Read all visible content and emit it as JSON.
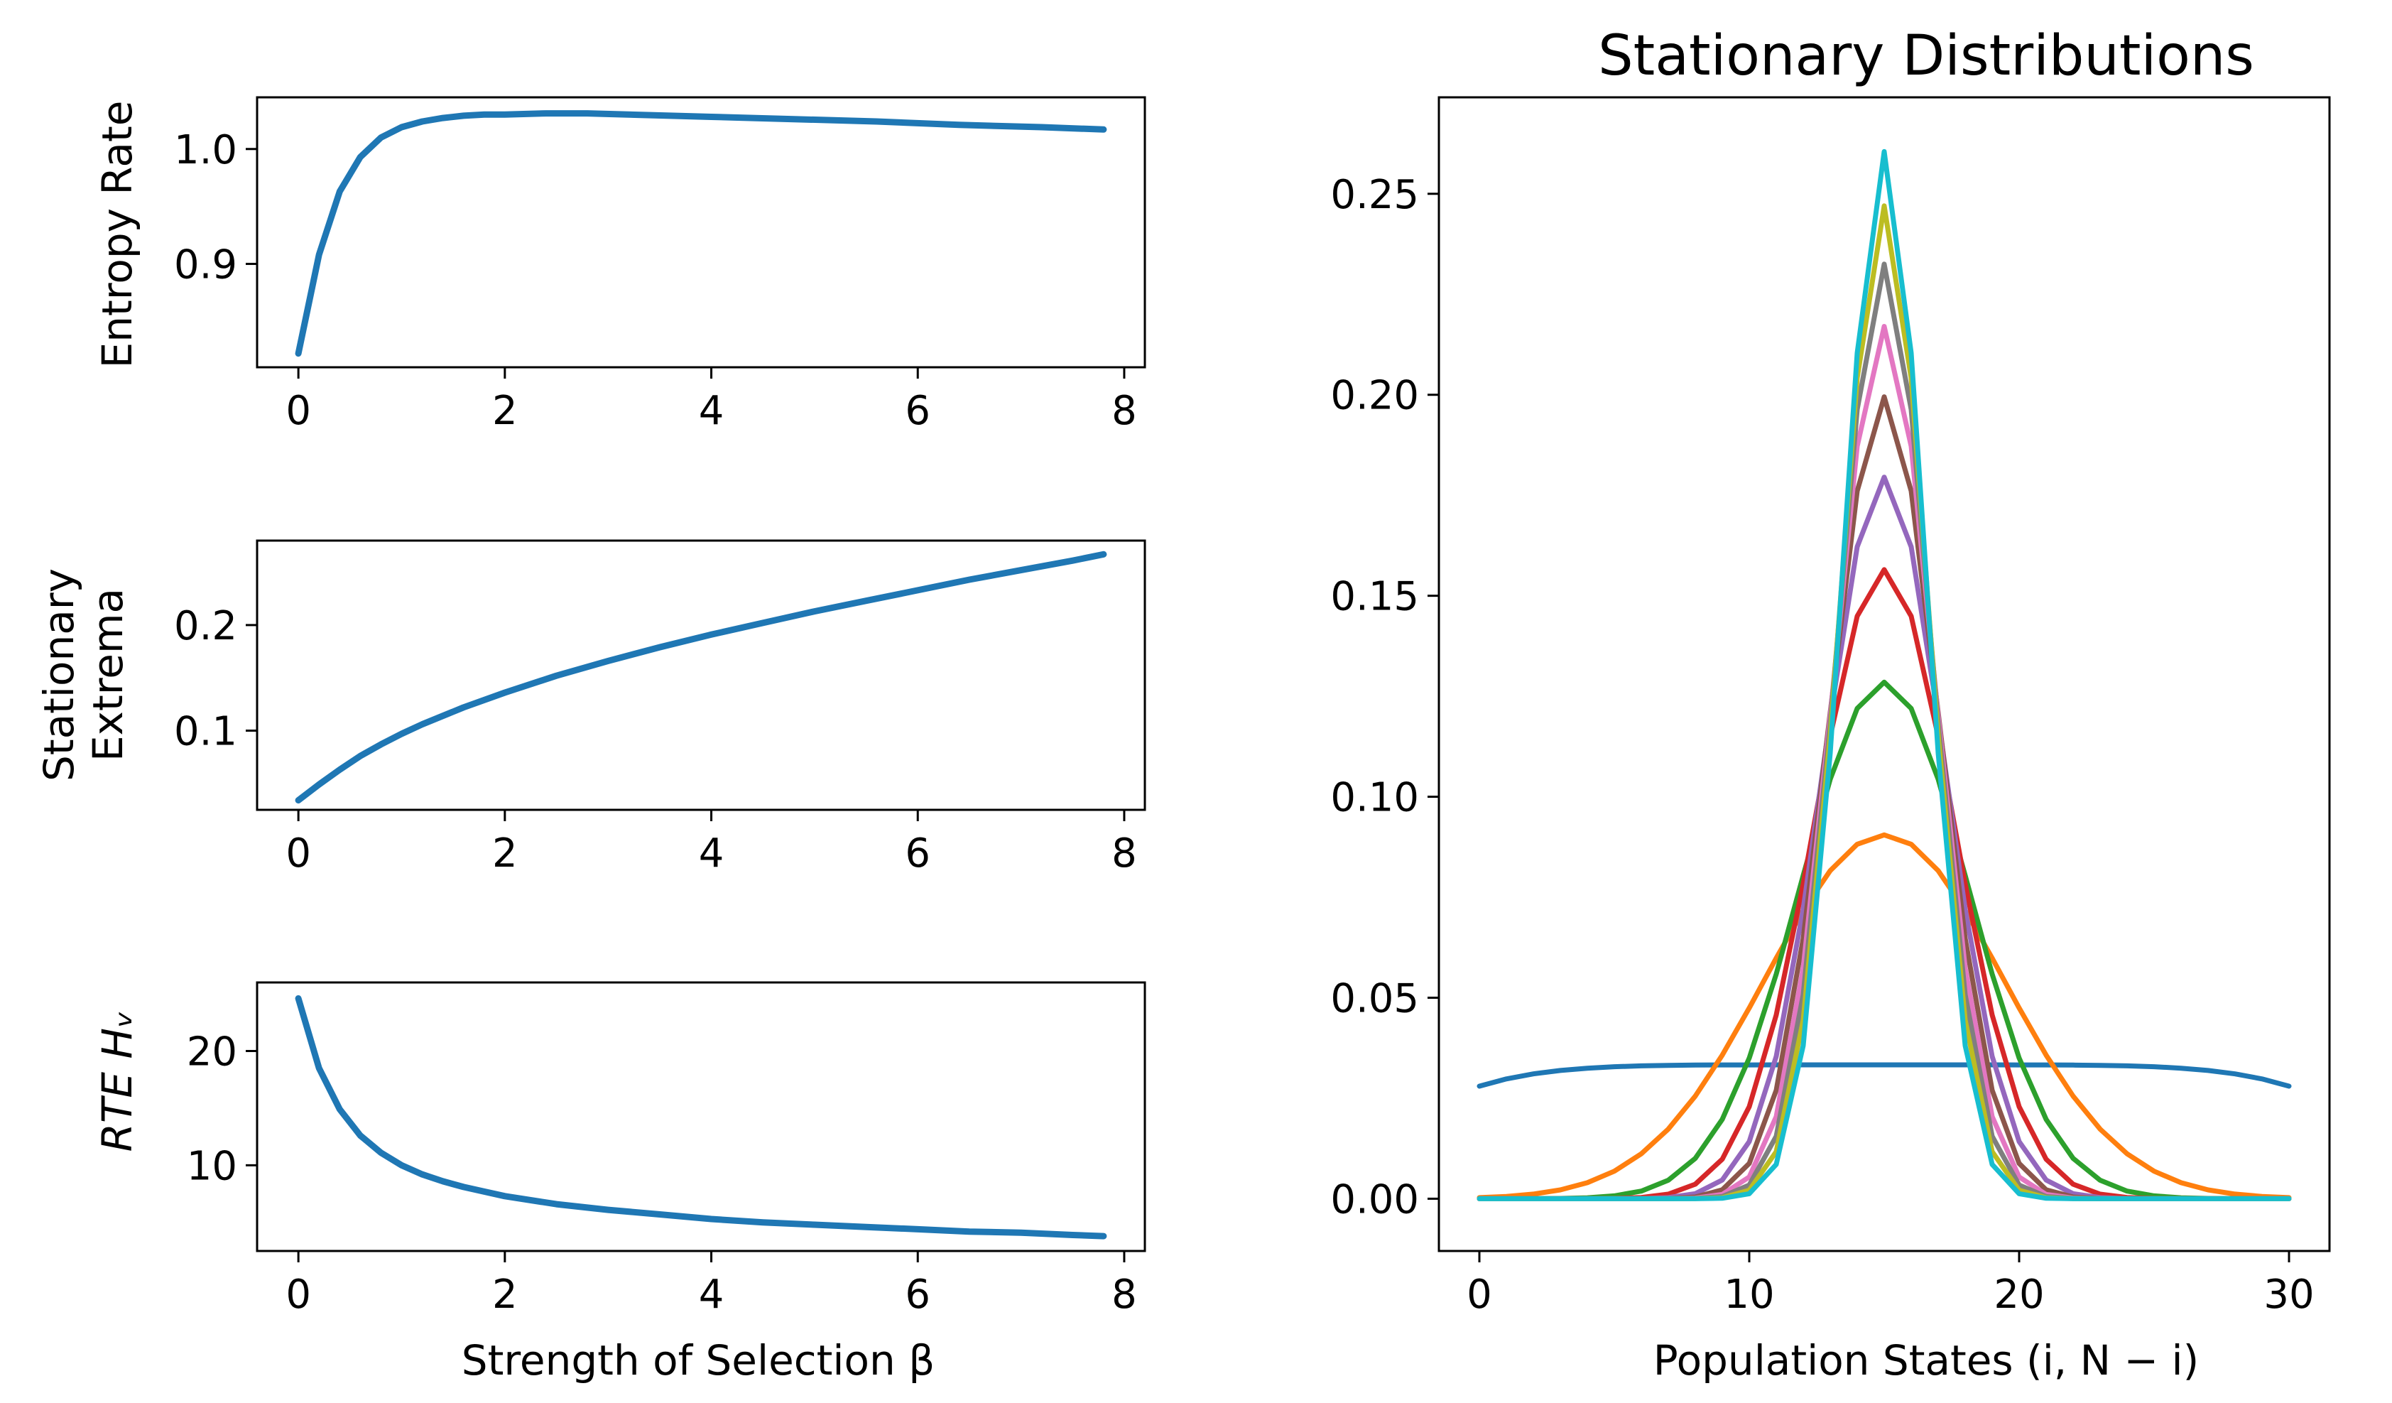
{
  "chart_data": [
    {
      "type": "line",
      "panel": "top-left",
      "title": "",
      "xlabel": "",
      "ylabel": "Entropy Rate",
      "xlim": [
        -0.4,
        8.2
      ],
      "ylim": [
        0.81,
        1.045
      ],
      "xticks": [
        0,
        2,
        4,
        6,
        8
      ],
      "yticks": [
        0.9,
        1.0
      ],
      "xtick_labels": [
        "0",
        "2",
        "4",
        "6",
        "8"
      ],
      "ytick_labels": [
        "0.9",
        "1.0"
      ],
      "series": [
        {
          "name": "entropy rate",
          "color": "#1f77b4",
          "x": [
            0,
            0.2,
            0.4,
            0.6,
            0.8,
            1.0,
            1.2,
            1.4,
            1.6,
            1.8,
            2.0,
            2.4,
            2.8,
            3.2,
            3.6,
            4.0,
            4.8,
            5.6,
            6.4,
            7.2,
            7.8
          ],
          "y": [
            0.822,
            0.908,
            0.963,
            0.993,
            1.01,
            1.019,
            1.024,
            1.027,
            1.029,
            1.03,
            1.03,
            1.031,
            1.031,
            1.03,
            1.029,
            1.028,
            1.026,
            1.024,
            1.021,
            1.019,
            1.017
          ]
        }
      ]
    },
    {
      "type": "line",
      "panel": "middle-left",
      "title": "",
      "xlabel": "",
      "ylabel_lines": [
        "Stationary",
        "Extrema"
      ],
      "xlim": [
        -0.4,
        8.2
      ],
      "ylim": [
        0.025,
        0.28
      ],
      "xticks": [
        0,
        2,
        4,
        6,
        8
      ],
      "yticks": [
        0.1,
        0.2
      ],
      "xtick_labels": [
        "0",
        "2",
        "4",
        "6",
        "8"
      ],
      "ytick_labels": [
        "0.1",
        "0.2"
      ],
      "series": [
        {
          "name": "stationary extrema",
          "color": "#1f77b4",
          "x": [
            0,
            0.2,
            0.4,
            0.6,
            0.8,
            1.0,
            1.2,
            1.6,
            2.0,
            2.5,
            3.0,
            3.5,
            4.0,
            4.5,
            5.0,
            5.5,
            6.0,
            6.5,
            7.0,
            7.5,
            7.8
          ],
          "y": [
            0.034,
            0.049,
            0.063,
            0.076,
            0.087,
            0.097,
            0.106,
            0.122,
            0.136,
            0.152,
            0.166,
            0.179,
            0.191,
            0.202,
            0.213,
            0.223,
            0.233,
            0.243,
            0.252,
            0.261,
            0.267
          ]
        }
      ]
    },
    {
      "type": "line",
      "panel": "bottom-left",
      "title": "",
      "xlabel": "Strength of Selection β",
      "ylabel": "RTE Hᵥ",
      "xlim": [
        -0.4,
        8.2
      ],
      "ylim": [
        2.5,
        26.0
      ],
      "xticks": [
        0,
        2,
        4,
        6,
        8
      ],
      "yticks": [
        10,
        20
      ],
      "xtick_labels": [
        "0",
        "2",
        "4",
        "6",
        "8"
      ],
      "ytick_labels": [
        "10",
        "20"
      ],
      "series": [
        {
          "name": "RTE",
          "color": "#1f77b4",
          "x": [
            0,
            0.2,
            0.4,
            0.6,
            0.8,
            1.0,
            1.2,
            1.4,
            1.6,
            1.8,
            2.0,
            2.5,
            3.0,
            3.5,
            4.0,
            4.5,
            5.0,
            5.5,
            6.0,
            6.5,
            7.0,
            7.5,
            7.8
          ],
          "y": [
            24.6,
            18.5,
            14.9,
            12.6,
            11.1,
            10.0,
            9.2,
            8.6,
            8.1,
            7.7,
            7.3,
            6.6,
            6.1,
            5.7,
            5.3,
            5.0,
            4.8,
            4.6,
            4.4,
            4.2,
            4.1,
            3.9,
            3.8
          ]
        }
      ]
    },
    {
      "type": "line",
      "panel": "right",
      "title": "Stationary Distributions",
      "xlabel": "Population States (i, N − i)",
      "ylabel": "",
      "xlim": [
        -1.5,
        31.5
      ],
      "ylim": [
        -0.013,
        0.274
      ],
      "xticks": [
        0,
        10,
        20,
        30
      ],
      "yticks": [
        0.0,
        0.05,
        0.1,
        0.15,
        0.2,
        0.25
      ],
      "xtick_labels": [
        "0",
        "10",
        "20",
        "30"
      ],
      "ytick_labels": [
        "0.00",
        "0.05",
        "0.10",
        "0.15",
        "0.20",
        "0.25"
      ],
      "x_range": [
        0,
        30
      ],
      "series": [
        {
          "name": "beta 0",
          "color": "#1f77b4",
          "peak": 0.0333,
          "form": "flat",
          "edge": 0.028
        },
        {
          "name": "beta 1",
          "color": "#ff7f0e",
          "peak": 0.0905,
          "width": 4.4
        },
        {
          "name": "beta 2",
          "color": "#2ca02c",
          "peak": 0.1285,
          "width": 3.1
        },
        {
          "name": "beta 3",
          "color": "#d62728",
          "peak": 0.1565,
          "width": 2.55
        },
        {
          "name": "beta 4",
          "color": "#9467bd",
          "peak": 0.1795,
          "width": 2.22
        },
        {
          "name": "beta 5",
          "color": "#8c564b",
          "peak": 0.1995,
          "width": 2.0
        },
        {
          "name": "beta 6",
          "color": "#e377c2",
          "peak": 0.217,
          "width": 1.84
        },
        {
          "name": "beta 7",
          "color": "#7f7f7f",
          "peak": 0.2325,
          "width": 1.72
        },
        {
          "name": "beta 8",
          "color": "#bcbd22",
          "peak": 0.247,
          "width": 1.62
        },
        {
          "name": "beta 9",
          "color": "#17becf",
          "peak": 0.2605,
          "width": 1.53
        }
      ]
    }
  ]
}
